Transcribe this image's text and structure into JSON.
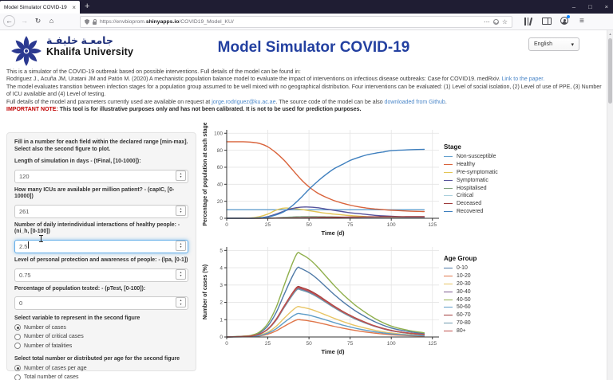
{
  "browser": {
    "tab_title": "Model Simulator COVID-19",
    "url_parts": {
      "scheme": "https://envbioprom.",
      "domain": "shinyapps.io",
      "path": "/COVID19_Model_KU/"
    },
    "icons": {
      "back": "←",
      "forward": "→",
      "reload": "↻",
      "home": "⌂",
      "more": "⋯",
      "star": "☆",
      "new_tab": "+",
      "tab_close": "×",
      "minimize": "–",
      "maximize": "□",
      "close": "×",
      "menu": "≡",
      "caret": "▾",
      "scroll_up": "▲",
      "spin_up": "▴",
      "spin_down": "▾"
    }
  },
  "header": {
    "logo_arabic": "جامعـة خليفـة",
    "logo_name": "Khalifa University",
    "title": "Model Simulator COVID-19",
    "language": "English",
    "title_color": "#2340a0",
    "logo_color": "#2b3990"
  },
  "intro": {
    "line1": "This is a simulator of the COVID-19 outbreak based on possible interventions. Full details of the model can be found in:",
    "line2_pre": "Rodriguez J., Acuña JM, Uratani JM and Patón M. (2020) A mechanistic population balance model to evaluate the impact of interventions on infectious disease outbreaks: Case for COVID19. medRxiv.",
    "line2_link": "Link to the paper.",
    "line3": "The model evaluates transition between infection stages for a population group assumed to be well mixed with no geographical distribution. Four interventions can be evaluated: (1) Level of social isolation, (2) Level of use of PPE, (3) Number of ICU available and (4) Level of testing.",
    "line4_pre": "Full details of the model and parameters currently used are available on request at ",
    "line4_email": "jorge.rodriguez@ku.ac.ae",
    "line4_mid": ".  The source code of the model can be also ",
    "line4_link": "downloaded from Github",
    "line4_end": ".",
    "note_label": "IMPORTANT NOTE:",
    "note_text": "This tool is for illustrative purposes only and has not been calibrated. It is not to be used for prediction purposes."
  },
  "form": {
    "intro": "Fill in a number for each field within the declared range [min-max]. Select also the second figure to plot.",
    "fields": [
      {
        "id": "tFinal",
        "label": "Length of simulation in days - (tFinal, [10-1000]):",
        "value": "120",
        "focused": false
      },
      {
        "id": "capIC",
        "label": "How many ICUs are available per million patient? - (capIC, [0-10000])",
        "value": "261",
        "focused": false
      },
      {
        "id": "ni_h",
        "label": "Number of daily interindividual interactions of healthy people: - (ni_h, [0-100])",
        "value": "2.5",
        "focused": true
      },
      {
        "id": "lpa",
        "label": "Level of personal protection and awareness of people: - (lpa, [0-1])",
        "value": "0.75",
        "focused": false
      },
      {
        "id": "pTest",
        "label": "Percentage of population tested: - (pTest, [0-100]):",
        "value": "0",
        "focused": false
      }
    ],
    "radio_groups": [
      {
        "id": "second-figure-variable",
        "label": "Select variable to represent in the second figure",
        "options": [
          "Number of cases",
          "Number of critical cases",
          "Number of fatalities"
        ],
        "selected": 0
      },
      {
        "id": "second-figure-mode",
        "label": "Select total number or distributed per age for the second figure",
        "options": [
          "Number of cases per age",
          "Total number of cases"
        ],
        "selected": 0
      }
    ]
  },
  "chart_data": [
    {
      "type": "line",
      "xlabel": "Time (d)",
      "ylabel": "Percentage of population at each stage",
      "legend_title": "Stage",
      "legend_position": "right",
      "grid": true,
      "xlim": [
        0,
        129
      ],
      "ylim": [
        0,
        104
      ],
      "xticks": [
        0,
        25,
        50,
        75,
        100,
        125
      ],
      "yticks": [
        0,
        20,
        40,
        60,
        80,
        100
      ],
      "x": [
        0,
        10,
        15,
        20,
        25,
        30,
        35,
        40,
        45,
        50,
        55,
        60,
        65,
        70,
        75,
        80,
        85,
        90,
        95,
        100,
        110,
        120
      ],
      "series": [
        {
          "name": "Non-susceptible",
          "color": "#64a0ce",
          "values": [
            10,
            10,
            10,
            10,
            10,
            10,
            10,
            10,
            10,
            10,
            10,
            10,
            10,
            10,
            10,
            10,
            10,
            10,
            10,
            10,
            10,
            10
          ]
        },
        {
          "name": "Healthy",
          "color": "#d9633b",
          "values": [
            90,
            90,
            89.5,
            88,
            84,
            77,
            68,
            57,
            46,
            37,
            30,
            25,
            21,
            18,
            15.5,
            13.5,
            12,
            11,
            10.2,
            9.5,
            8.5,
            8
          ]
        },
        {
          "name": "Pre-symptomatic",
          "color": "#e3c554",
          "values": [
            0,
            0,
            0.5,
            2,
            5,
            9.5,
            12,
            11.5,
            10.5,
            9,
            7.5,
            6,
            5,
            4,
            3.2,
            2.5,
            2,
            1.5,
            1.2,
            1,
            0.7,
            0.5
          ]
        },
        {
          "name": "Symptomatic",
          "color": "#56529b",
          "values": [
            0,
            0,
            0,
            0.5,
            2,
            5,
            8.5,
            11.5,
            13,
            13.2,
            12.5,
            11,
            9.5,
            8,
            6.5,
            5.5,
            4.5,
            3.5,
            2.8,
            2.3,
            1.5,
            1
          ]
        },
        {
          "name": "Hospitalised",
          "color": "#7fa07c",
          "values": [
            0,
            0,
            0,
            0.1,
            0.3,
            0.6,
            1.1,
            1.6,
            1.9,
            2,
            1.9,
            1.8,
            1.6,
            1.3,
            1.1,
            0.9,
            0.8,
            0.6,
            0.5,
            0.4,
            0.3,
            0.2
          ]
        },
        {
          "name": "Critical",
          "color": "#a9cfdc",
          "values": [
            0,
            0,
            0,
            0,
            0.1,
            0.3,
            0.5,
            0.7,
            0.9,
            1,
            1,
            0.95,
            0.85,
            0.75,
            0.65,
            0.6,
            0.5,
            0.45,
            0.4,
            0.3,
            0.2,
            0.15
          ]
        },
        {
          "name": "Deceased",
          "color": "#9e3b3b",
          "values": [
            0,
            0,
            0,
            0,
            0.1,
            0.15,
            0.3,
            0.4,
            0.55,
            0.7,
            0.85,
            1,
            1.1,
            1.25,
            1.4,
            1.5,
            1.6,
            1.7,
            1.75,
            1.8,
            1.85,
            1.9
          ]
        },
        {
          "name": "Recovered",
          "color": "#3e7fbe",
          "values": [
            0,
            0,
            0,
            0.5,
            1.5,
            4,
            8,
            15,
            24,
            34,
            43,
            51,
            58,
            63,
            68,
            71.5,
            74.5,
            76.5,
            78,
            79.5,
            80.5,
            81
          ]
        }
      ]
    },
    {
      "type": "line",
      "xlabel": "Time (d)",
      "ylabel": "Number of cases (%)",
      "legend_title": "Age Group",
      "legend_position": "right",
      "grid": true,
      "xlim": [
        0,
        129
      ],
      "ylim": [
        0,
        5.2
      ],
      "xticks": [
        0,
        25,
        50,
        75,
        100,
        125
      ],
      "yticks": [
        0,
        1,
        2,
        3,
        4,
        5
      ],
      "x": [
        0,
        10,
        15,
        20,
        25,
        30,
        35,
        40,
        43,
        45,
        50,
        55,
        60,
        65,
        70,
        75,
        80,
        90,
        100,
        110,
        120
      ],
      "series": [
        {
          "name": "0-10",
          "color": "#4e79a7",
          "values": [
            0,
            0.04,
            0.08,
            0.24,
            0.64,
            1.4,
            2.48,
            3.52,
            4,
            3.96,
            3.72,
            3.36,
            2.92,
            2.48,
            2.08,
            1.72,
            1.4,
            0.88,
            0.52,
            0.32,
            0.2
          ]
        },
        {
          "name": "10-20",
          "color": "#e0764a",
          "values": [
            0,
            0.01,
            0.02,
            0.06,
            0.16,
            0.35,
            0.62,
            0.88,
            1,
            0.99,
            0.93,
            0.84,
            0.73,
            0.62,
            0.52,
            0.43,
            0.35,
            0.22,
            0.13,
            0.08,
            0.05
          ]
        },
        {
          "name": "20-30",
          "color": "#e8c565",
          "values": [
            0,
            0.02,
            0.04,
            0.11,
            0.28,
            0.61,
            1.09,
            1.54,
            1.75,
            1.73,
            1.63,
            1.47,
            1.28,
            1.09,
            0.91,
            0.75,
            0.61,
            0.39,
            0.23,
            0.14,
            0.09
          ]
        },
        {
          "name": "30-40",
          "color": "#7d5b8f",
          "values": [
            0,
            0.03,
            0.06,
            0.17,
            0.45,
            0.98,
            1.74,
            2.46,
            2.8,
            2.77,
            2.6,
            2.35,
            2.04,
            1.74,
            1.46,
            1.2,
            0.98,
            0.62,
            0.36,
            0.22,
            0.14
          ]
        },
        {
          "name": "40-50",
          "color": "#8faf4c",
          "values": [
            0,
            0.05,
            0.1,
            0.29,
            0.78,
            1.7,
            3.01,
            4.27,
            4.85,
            4.8,
            4.51,
            4.07,
            3.54,
            3.01,
            2.52,
            2.09,
            1.7,
            1.07,
            0.63,
            0.39,
            0.24
          ]
        },
        {
          "name": "50-60",
          "color": "#5e9dc8",
          "values": [
            0,
            0.01,
            0.03,
            0.08,
            0.22,
            0.47,
            0.84,
            1.19,
            1.35,
            1.34,
            1.26,
            1.13,
            0.99,
            0.84,
            0.7,
            0.58,
            0.47,
            0.3,
            0.18,
            0.11,
            0.07
          ]
        },
        {
          "name": "60-70",
          "color": "#a23c3c",
          "values": [
            0,
            0.03,
            0.06,
            0.17,
            0.46,
            1.02,
            1.8,
            2.55,
            2.9,
            2.87,
            2.7,
            2.44,
            2.12,
            1.8,
            1.51,
            1.25,
            1.02,
            0.64,
            0.38,
            0.23,
            0.15
          ]
        },
        {
          "name": "70-80",
          "color": "#6e99ae",
          "values": [
            0,
            0.03,
            0.06,
            0.17,
            0.44,
            0.96,
            1.71,
            2.42,
            2.75,
            2.72,
            2.56,
            2.31,
            2.01,
            1.71,
            1.43,
            1.18,
            0.96,
            0.61,
            0.36,
            0.22,
            0.14
          ]
        },
        {
          "name": "80+",
          "color": "#c0504d",
          "values": [
            0,
            0.03,
            0.06,
            0.17,
            0.46,
            1,
            1.77,
            2.51,
            2.85,
            2.82,
            2.65,
            2.39,
            2.08,
            1.77,
            1.48,
            1.23,
            1,
            0.63,
            0.37,
            0.23,
            0.14
          ]
        }
      ]
    }
  ]
}
